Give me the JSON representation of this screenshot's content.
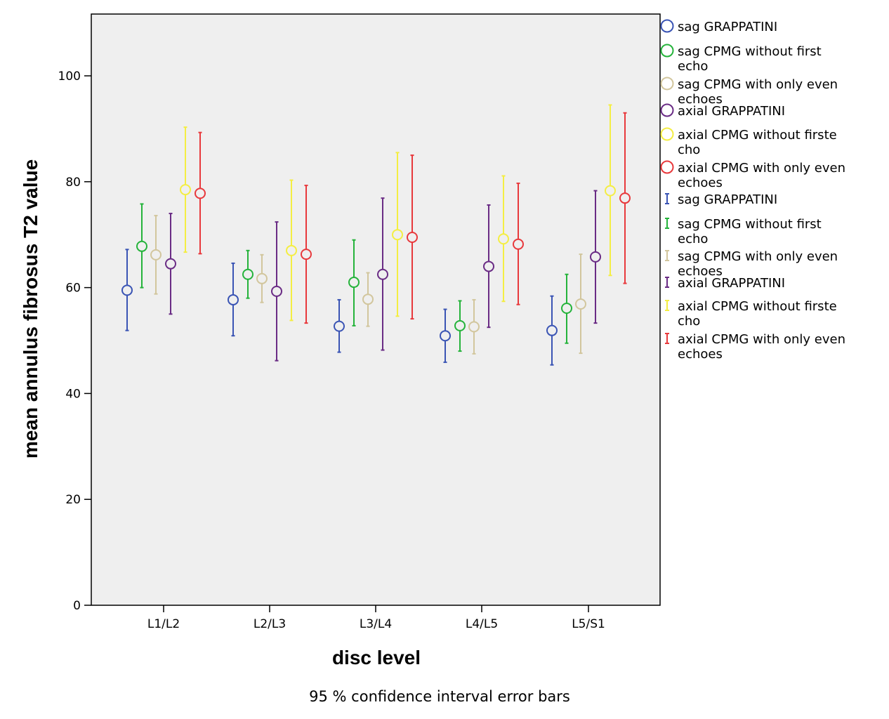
{
  "chart_data": {
    "type": "scatter",
    "subtype": "error-bar",
    "title": "",
    "xlabel": "disc level",
    "ylabel": "mean annulus fibrosus T2 value",
    "footnote": "95 % confidence interval error bars",
    "ylim": [
      0,
      112
    ],
    "yticks": [
      0,
      20,
      40,
      60,
      80,
      100
    ],
    "categories": [
      "L1/L2",
      "L2/L3",
      "L3/L4",
      "L4/L5",
      "L5/S1"
    ],
    "series": [
      {
        "name": "sag GRAPPATINI",
        "color": "#3a54b4",
        "means": [
          59.5,
          57.7,
          52.7,
          50.9,
          51.9
        ],
        "lower": [
          51.9,
          50.9,
          47.8,
          45.9,
          45.4
        ],
        "upper": [
          67.2,
          64.6,
          57.7,
          55.9,
          58.4
        ]
      },
      {
        "name": "sag CPMG without first echo",
        "color": "#25b33b",
        "means": [
          67.8,
          62.5,
          61.0,
          52.8,
          56.1
        ],
        "lower": [
          60.0,
          58.0,
          52.8,
          48.0,
          49.5
        ],
        "upper": [
          75.8,
          67.0,
          69.0,
          57.5,
          62.5
        ]
      },
      {
        "name": "sag CPMG with only even echoes",
        "color": "#d2c69d",
        "means": [
          66.2,
          61.7,
          57.8,
          52.6,
          56.9
        ],
        "lower": [
          58.8,
          57.2,
          52.7,
          47.5,
          47.6
        ],
        "upper": [
          73.6,
          66.2,
          62.8,
          57.7,
          66.3
        ]
      },
      {
        "name": "axial GRAPPATINI",
        "color": "#6a2c85",
        "means": [
          64.5,
          59.3,
          62.5,
          64.0,
          65.8
        ],
        "lower": [
          55.0,
          46.2,
          48.2,
          52.5,
          53.3
        ],
        "upper": [
          74.0,
          72.4,
          76.9,
          75.6,
          78.3
        ]
      },
      {
        "name": "axial CPMG without firste cho",
        "color": "#f4ee43",
        "means": [
          78.5,
          67.0,
          70.0,
          69.2,
          78.3
        ],
        "lower": [
          66.7,
          53.8,
          54.6,
          57.4,
          62.3
        ],
        "upper": [
          90.3,
          80.3,
          85.5,
          81.1,
          94.5
        ]
      },
      {
        "name": "axial CPMG with only even echoes",
        "color": "#e8393c",
        "means": [
          77.8,
          66.3,
          69.5,
          68.2,
          76.9
        ],
        "lower": [
          66.4,
          53.3,
          54.1,
          56.8,
          60.8
        ],
        "upper": [
          89.3,
          79.3,
          85.0,
          79.7,
          93.0
        ]
      }
    ],
    "legend": {
      "position": "right",
      "marker_entries": [
        [
          "sag GRAPPATINI"
        ],
        [
          "sag CPMG without first",
          "echo"
        ],
        [
          "sag CPMG with only even",
          "echoes"
        ],
        [
          "axial GRAPPATINI"
        ],
        [
          "axial CPMG without firste",
          "cho"
        ],
        [
          "axial CPMG with only even",
          "echoes"
        ]
      ],
      "errorbar_entries": [
        [
          "sag GRAPPATINI"
        ],
        [
          "sag CPMG without first",
          "echo"
        ],
        [
          "sag CPMG with only even",
          "echoes"
        ],
        [
          "axial GRAPPATINI"
        ],
        [
          "axial CPMG without firste",
          "cho"
        ],
        [
          "axial CPMG with only even",
          "echoes"
        ]
      ]
    },
    "plot_background": "#efefef",
    "grid": false
  }
}
